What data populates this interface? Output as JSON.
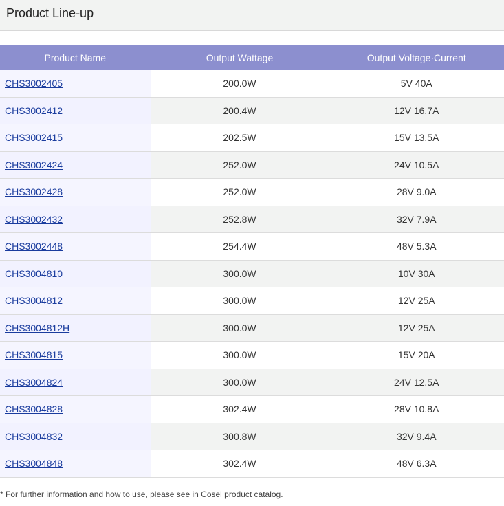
{
  "section": {
    "title": "Product Line-up"
  },
  "table": {
    "headers": [
      "Product Name",
      "Output Wattage",
      "Output Voltage·Current"
    ],
    "rows": [
      {
        "name": "CHS3002405",
        "wattage": "200.0W",
        "voltage_current": "5V 40A"
      },
      {
        "name": "CHS3002412",
        "wattage": "200.4W",
        "voltage_current": "12V 16.7A"
      },
      {
        "name": "CHS3002415",
        "wattage": "202.5W",
        "voltage_current": "15V 13.5A"
      },
      {
        "name": "CHS3002424",
        "wattage": "252.0W",
        "voltage_current": "24V 10.5A"
      },
      {
        "name": "CHS3002428",
        "wattage": "252.0W",
        "voltage_current": "28V 9.0A"
      },
      {
        "name": "CHS3002432",
        "wattage": "252.8W",
        "voltage_current": "32V 7.9A"
      },
      {
        "name": "CHS3002448",
        "wattage": "254.4W",
        "voltage_current": "48V 5.3A"
      },
      {
        "name": "CHS3004810",
        "wattage": "300.0W",
        "voltage_current": "10V 30A"
      },
      {
        "name": "CHS3004812",
        "wattage": "300.0W",
        "voltage_current": "12V 25A"
      },
      {
        "name": "CHS3004812H",
        "wattage": "300.0W",
        "voltage_current": "12V 25A"
      },
      {
        "name": "CHS3004815",
        "wattage": "300.0W",
        "voltage_current": "15V 20A"
      },
      {
        "name": "CHS3004824",
        "wattage": "300.0W",
        "voltage_current": "24V 12.5A"
      },
      {
        "name": "CHS3004828",
        "wattage": "302.4W",
        "voltage_current": "28V 10.8A"
      },
      {
        "name": "CHS3004832",
        "wattage": "300.8W",
        "voltage_current": "32V 9.4A"
      },
      {
        "name": "CHS3004848",
        "wattage": "302.4W",
        "voltage_current": "48V 6.3A"
      }
    ]
  },
  "footnote": "* For further information and how to use, please see in Cosel product catalog.",
  "colors": {
    "header_bg": "#8c8fcf",
    "link": "#1a3c9e",
    "stripe": "#f2f3f2"
  }
}
